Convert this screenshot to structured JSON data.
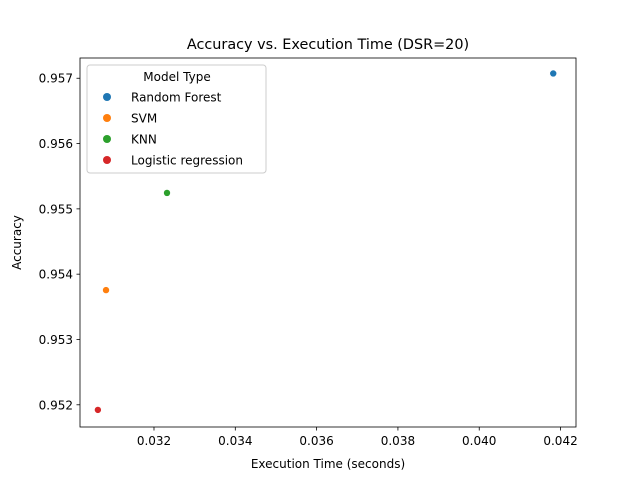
{
  "chart_data": {
    "type": "scatter",
    "title": "Accuracy vs. Execution Time (DSR=20)",
    "xlabel": "Execution Time (seconds)",
    "ylabel": "Accuracy",
    "xlim": [
      0.03018,
      0.04238
    ],
    "ylim": [
      0.95166,
      0.95731
    ],
    "xticks": [
      0.032,
      0.034,
      0.036,
      0.038,
      0.04,
      0.042
    ],
    "xtick_labels": [
      "0.032",
      "0.034",
      "0.036",
      "0.038",
      "0.040",
      "0.042"
    ],
    "yticks": [
      0.952,
      0.953,
      0.954,
      0.955,
      0.956,
      0.957
    ],
    "ytick_labels": [
      "0.952",
      "0.953",
      "0.954",
      "0.955",
      "0.956",
      "0.957"
    ],
    "grid": false,
    "legend_title": "Model Type",
    "legend_position": "top-left",
    "series": [
      {
        "name": "Random Forest",
        "color": "#1f77b4",
        "points": [
          {
            "x": 0.04182,
            "y": 0.957073
          }
        ]
      },
      {
        "name": "SVM",
        "color": "#ff7f0e",
        "points": [
          {
            "x": 0.03082,
            "y": 0.953756
          }
        ]
      },
      {
        "name": "KNN",
        "color": "#2ca02c",
        "points": [
          {
            "x": 0.03232,
            "y": 0.955244
          }
        ]
      },
      {
        "name": "Logistic regression",
        "color": "#d62728",
        "points": [
          {
            "x": 0.03062,
            "y": 0.951922
          }
        ]
      }
    ]
  }
}
